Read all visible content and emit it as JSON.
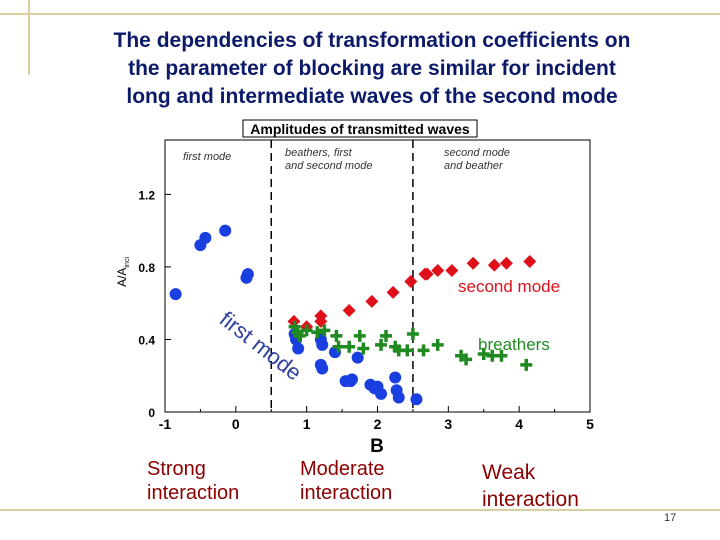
{
  "slide": {
    "title": "The dependencies of transformation coefficients on\nthe parameter of blocking are similar for incident\nlong and intermediate waves of the second mode",
    "page_number": "17",
    "bottom_labels": {
      "strong": "Strong\ninteraction",
      "moderate": "Moderate\n interaction",
      "weak": "Weak\ninteraction"
    }
  },
  "chart_data": {
    "type": "scatter",
    "title": "Amplitudes of transmitted waves",
    "xlabel": "B",
    "ylabel": "A/A",
    "ylabel_sub": "inci",
    "xlim": [
      -1,
      5
    ],
    "ylim": [
      0,
      1.5
    ],
    "xticks": [
      -1,
      0,
      1,
      2,
      3,
      4,
      5
    ],
    "yticks": [
      0,
      0.4,
      0.8,
      1.2
    ],
    "grid": false,
    "regions": {
      "dividers": [
        0.5,
        2.5
      ],
      "labels": [
        "first mode",
        "beathers, first\nand second mode",
        "second mode\nand beather"
      ]
    },
    "annotations": {
      "second_mode": "second mode",
      "breathers": "breathers",
      "first_mode": "first mode"
    },
    "colors": {
      "first_mode": "#1a3fe0",
      "second_mode": "#e0101a",
      "breathers": "#1f8a1f",
      "divider": "#000000"
    },
    "series": [
      {
        "marker": "circle",
        "color": "#1a3fe0",
        "points": [
          [
            -0.85,
            0.65
          ],
          [
            -0.5,
            0.92
          ],
          [
            -0.43,
            0.96
          ],
          [
            -0.15,
            1.0
          ],
          [
            0.15,
            0.74
          ],
          [
            0.17,
            0.76
          ],
          [
            0.83,
            0.43
          ],
          [
            0.85,
            0.4
          ],
          [
            0.88,
            0.35
          ],
          [
            1.2,
            0.4
          ],
          [
            1.22,
            0.37
          ],
          [
            1.2,
            0.26
          ],
          [
            1.22,
            0.24
          ],
          [
            1.4,
            0.33
          ],
          [
            1.55,
            0.17
          ],
          [
            1.62,
            0.17
          ],
          [
            1.64,
            0.18
          ],
          [
            1.72,
            0.3
          ],
          [
            1.9,
            0.15
          ],
          [
            1.96,
            0.13
          ],
          [
            2.0,
            0.14
          ],
          [
            2.05,
            0.1
          ],
          [
            2.25,
            0.19
          ],
          [
            2.27,
            0.12
          ],
          [
            2.3,
            0.08
          ],
          [
            2.55,
            0.07
          ]
        ]
      },
      {
        "marker": "diamond",
        "color": "#e0101a",
        "points": [
          [
            0.82,
            0.5
          ],
          [
            1.0,
            0.47
          ],
          [
            1.2,
            0.5
          ],
          [
            1.2,
            0.53
          ],
          [
            1.6,
            0.56
          ],
          [
            1.92,
            0.61
          ],
          [
            2.22,
            0.66
          ],
          [
            2.47,
            0.72
          ],
          [
            2.67,
            0.76
          ],
          [
            2.7,
            0.76
          ],
          [
            2.85,
            0.78
          ],
          [
            3.05,
            0.78
          ],
          [
            3.35,
            0.82
          ],
          [
            3.65,
            0.81
          ],
          [
            3.82,
            0.82
          ],
          [
            4.15,
            0.83
          ]
        ]
      },
      {
        "marker": "plus",
        "color": "#1f8a1f",
        "points": [
          [
            0.83,
            0.47
          ],
          [
            0.87,
            0.44
          ],
          [
            0.9,
            0.42
          ],
          [
            1.0,
            0.45
          ],
          [
            1.15,
            0.44
          ],
          [
            1.25,
            0.45
          ],
          [
            1.42,
            0.42
          ],
          [
            1.45,
            0.36
          ],
          [
            1.6,
            0.36
          ],
          [
            1.75,
            0.42
          ],
          [
            1.8,
            0.35
          ],
          [
            2.05,
            0.37
          ],
          [
            2.12,
            0.42
          ],
          [
            2.25,
            0.36
          ],
          [
            2.3,
            0.34
          ],
          [
            2.42,
            0.34
          ],
          [
            2.5,
            0.43
          ],
          [
            2.65,
            0.34
          ],
          [
            2.85,
            0.37
          ],
          [
            3.18,
            0.31
          ],
          [
            3.25,
            0.29
          ],
          [
            3.5,
            0.32
          ],
          [
            3.62,
            0.31
          ],
          [
            3.75,
            0.31
          ],
          [
            4.1,
            0.26
          ]
        ]
      }
    ]
  }
}
